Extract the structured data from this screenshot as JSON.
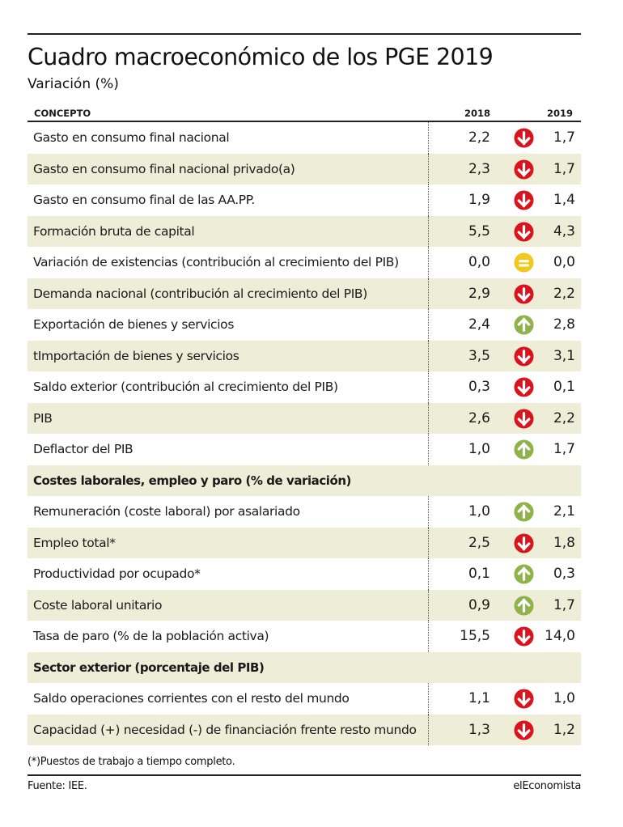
{
  "title": "Cuadro macroeconómico de los PGE 2019",
  "subtitle": "Variación (%)",
  "headers": {
    "concept": "CONCEPTO",
    "y2018": "2018",
    "y2019": "2019"
  },
  "colors": {
    "down": "#d9141e",
    "up": "#8fb24a",
    "equal": "#f2c81d",
    "shade": "#ededd8"
  },
  "rows": [
    {
      "label": "Gasto en consumo final nacional",
      "v2018": "2,2",
      "v2019": "1,7",
      "trend": "down",
      "shaded": false
    },
    {
      "label": "Gasto en consumo final nacional privado(a)",
      "v2018": "2,3",
      "v2019": "1,7",
      "trend": "down",
      "shaded": true
    },
    {
      "label": "Gasto en consumo final de las AA.PP.",
      "v2018": "1,9",
      "v2019": "1,4",
      "trend": "down",
      "shaded": false
    },
    {
      "label": "Formación bruta de capital",
      "v2018": "5,5",
      "v2019": "4,3",
      "trend": "down",
      "shaded": true
    },
    {
      "label": "Variación de existencias (contribución al crecimiento del PIB)",
      "v2018": "0,0",
      "v2019": "0,0",
      "trend": "equal",
      "shaded": false
    },
    {
      "label": "Demanda nacional (contribución al crecimiento del PIB)",
      "v2018": "2,9",
      "v2019": "2,2",
      "trend": "down",
      "shaded": true
    },
    {
      "label": "Exportación de bienes y servicios",
      "v2018": "2,4",
      "v2019": "2,8",
      "trend": "up",
      "shaded": false
    },
    {
      "label": "tImportación de bienes y servicios",
      "v2018": "3,5",
      "v2019": "3,1",
      "trend": "down",
      "shaded": true
    },
    {
      "label": "Saldo exterior (contribución al crecimiento del PIB)",
      "v2018": "0,3",
      "v2019": "0,1",
      "trend": "down",
      "shaded": false
    },
    {
      "label": "PIB",
      "v2018": "2,6",
      "v2019": "2,2",
      "trend": "down",
      "shaded": true
    },
    {
      "label": "Deflactor del PIB",
      "v2018": "1,0",
      "v2019": "1,7",
      "trend": "up",
      "shaded": false
    },
    {
      "label": "Costes laborales, empleo y paro (% de variación)",
      "section": true,
      "shaded": true
    },
    {
      "label": "Remuneración (coste laboral) por asalariado",
      "v2018": "1,0",
      "v2019": "2,1",
      "trend": "up",
      "shaded": false
    },
    {
      "label": "Empleo total*",
      "v2018": "2,5",
      "v2019": "1,8",
      "trend": "down",
      "shaded": true
    },
    {
      "label": "Productividad por ocupado*",
      "v2018": "0,1",
      "v2019": "0,3",
      "trend": "up",
      "shaded": false
    },
    {
      "label": "Coste laboral unitario",
      "v2018": "0,9",
      "v2019": "1,7",
      "trend": "up",
      "shaded": true
    },
    {
      "label": "Tasa de paro (% de la población activa)",
      "v2018": "15,5",
      "v2019": "14,0",
      "trend": "down",
      "shaded": false
    },
    {
      "label": "Sector exterior (porcentaje del PIB)",
      "section": true,
      "shaded": true
    },
    {
      "label": "Saldo operaciones corrientes con el resto del mundo",
      "v2018": "1,1",
      "v2019": "1,0",
      "trend": "down",
      "shaded": false
    },
    {
      "label": "Capacidad (+) necesidad (-) de financiación frente resto mundo",
      "v2018": "1,3",
      "v2019": "1,2",
      "trend": "down",
      "shaded": true
    }
  ],
  "note": "(*)Puestos de trabajo a tiempo completo.",
  "source": "Fuente: IEE.",
  "brand": "elEconomista"
}
